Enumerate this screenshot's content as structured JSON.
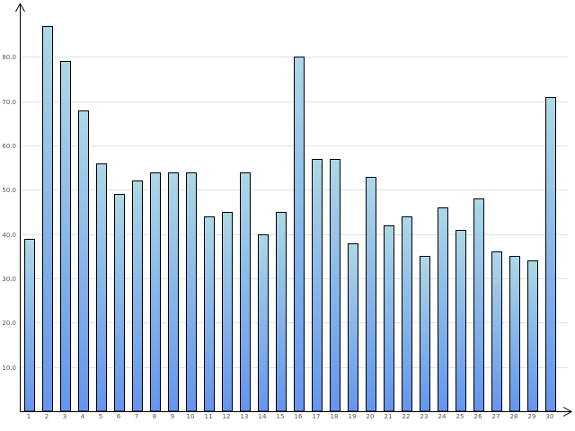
{
  "chart_data": {
    "type": "bar",
    "title": "",
    "xlabel": "",
    "ylabel": "",
    "ylim": [
      0,
      90
    ],
    "yticks": [
      "10.0",
      "20.0",
      "30.0",
      "40.0",
      "50.0",
      "60.0",
      "70.0",
      "80.0"
    ],
    "ytick_values": [
      10,
      20,
      30,
      40,
      50,
      60,
      70,
      80
    ],
    "grid": true,
    "legend": "none",
    "categories": [
      "1",
      "2",
      "3",
      "4",
      "5",
      "6",
      "7",
      "8",
      "9",
      "10",
      "11",
      "12",
      "13",
      "14",
      "15",
      "16",
      "17",
      "18",
      "19",
      "20",
      "21",
      "22",
      "23",
      "24",
      "25",
      "26",
      "27",
      "28",
      "29",
      "30"
    ],
    "values": [
      39,
      87,
      79,
      68,
      56,
      49,
      52,
      54,
      54,
      54,
      44,
      45,
      54,
      40,
      45,
      80,
      57,
      57,
      38,
      53,
      42,
      44,
      35,
      46,
      41,
      48,
      36,
      35,
      34,
      71
    ],
    "colors": {
      "bar_top": "#add8e6",
      "bar_bottom": "#6495ed",
      "bar_stroke": "#000000",
      "grid": "#e2e2e2",
      "axis": "#000000",
      "tick_text": "#555555"
    }
  }
}
